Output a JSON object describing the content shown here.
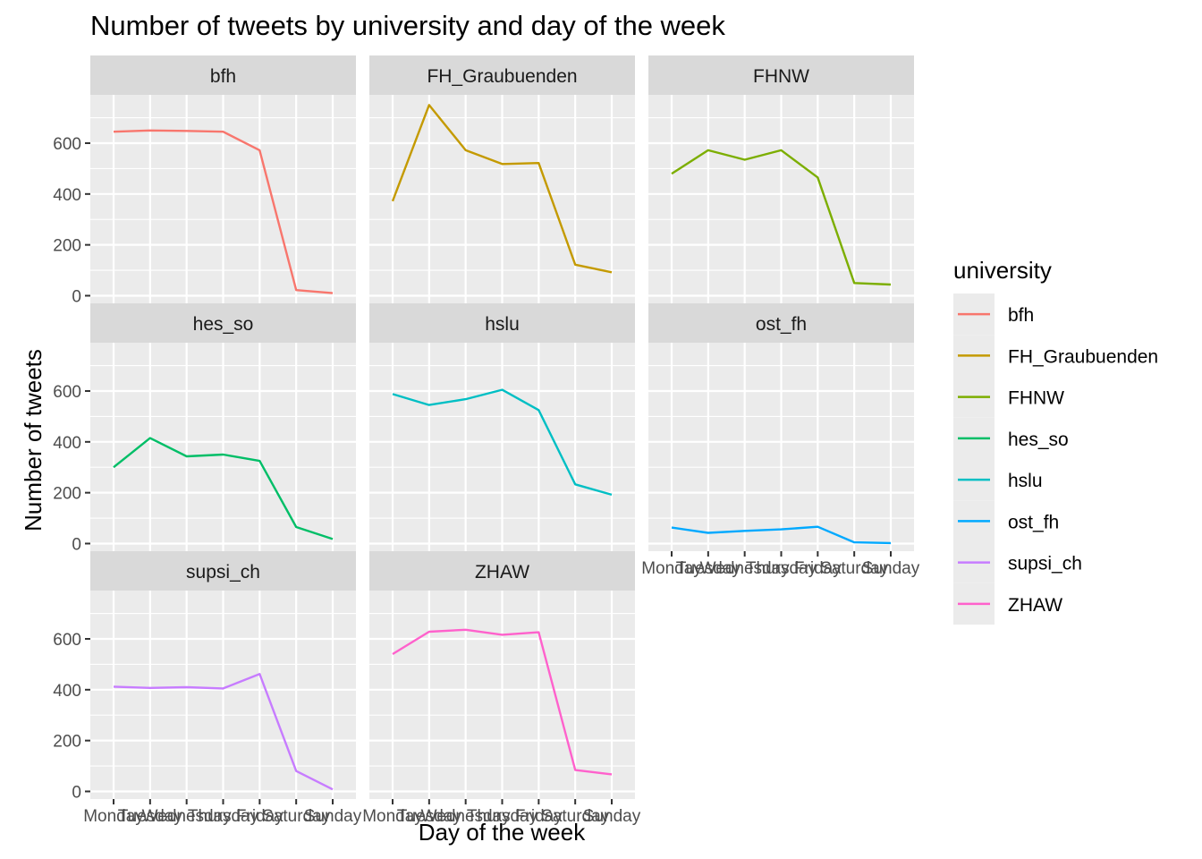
{
  "chart_data": {
    "type": "line",
    "title": "Number of tweets by university and day of the week",
    "xlabel": "Day of the week",
    "ylabel": "Number of tweets",
    "categories": [
      "Monday",
      "Tuesday",
      "Wednesday",
      "Thursday",
      "Friday",
      "Saturday",
      "Sunday"
    ],
    "ylim": [
      -30,
      790
    ],
    "yticks": [
      "0",
      "200",
      "400",
      "600"
    ],
    "grid": true,
    "facet_layout": "3x3",
    "legend_title": "university",
    "legend_position": "right",
    "series": [
      {
        "name": "bfh",
        "color": "#F8766D",
        "values": [
          645,
          650,
          648,
          645,
          572,
          22,
          10
        ]
      },
      {
        "name": "FH_Graubuenden",
        "color": "#C49A00",
        "values": [
          372,
          750,
          572,
          518,
          522,
          122,
          92
        ]
      },
      {
        "name": "FHNW",
        "color": "#7CAE00",
        "values": [
          480,
          572,
          535,
          572,
          465,
          50,
          44
        ]
      },
      {
        "name": "hes_so",
        "color": "#00BE67",
        "values": [
          300,
          415,
          343,
          350,
          325,
          65,
          18
        ]
      },
      {
        "name": "hslu",
        "color": "#00BFC4",
        "values": [
          588,
          545,
          568,
          605,
          525,
          233,
          192
        ]
      },
      {
        "name": "ost_fh",
        "color": "#00A9FF",
        "values": [
          63,
          42,
          50,
          56,
          66,
          5,
          2
        ]
      },
      {
        "name": "supsi_ch",
        "color": "#C77CFF",
        "values": [
          412,
          407,
          410,
          405,
          462,
          80,
          8
        ]
      },
      {
        "name": "ZHAW",
        "color": "#FF61CC",
        "values": [
          540,
          628,
          636,
          616,
          626,
          84,
          67
        ]
      }
    ]
  }
}
